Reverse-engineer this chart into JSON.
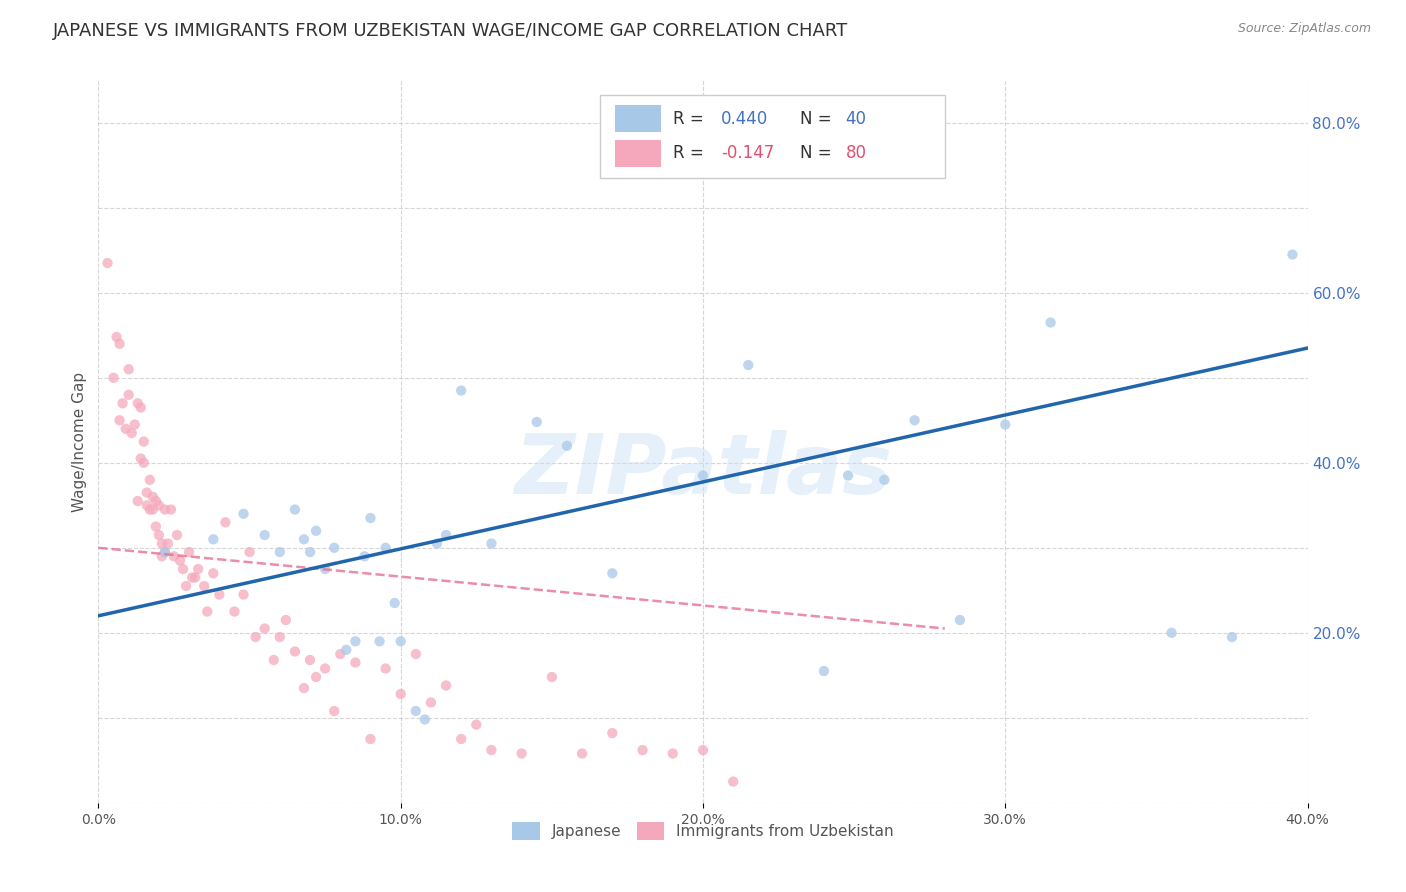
{
  "title": "JAPANESE VS IMMIGRANTS FROM UZBEKISTAN WAGE/INCOME GAP CORRELATION CHART",
  "source": "Source: ZipAtlas.com",
  "ylabel": "Wage/Income Gap",
  "watermark": "ZIPatlas",
  "xlim": [
    0.0,
    0.4
  ],
  "ylim": [
    0.0,
    0.85
  ],
  "xtick_labels": [
    "0.0%",
    "10.0%",
    "20.0%",
    "30.0%",
    "40.0%"
  ],
  "xtick_vals": [
    0.0,
    0.1,
    0.2,
    0.3,
    0.4
  ],
  "ytick_labels": [
    "20.0%",
    "40.0%",
    "60.0%",
    "80.0%"
  ],
  "ytick_vals": [
    0.2,
    0.4,
    0.6,
    0.8
  ],
  "blue_scatter_x": [
    0.022,
    0.038,
    0.048,
    0.055,
    0.06,
    0.065,
    0.068,
    0.07,
    0.072,
    0.075,
    0.078,
    0.082,
    0.085,
    0.088,
    0.09,
    0.093,
    0.095,
    0.098,
    0.1,
    0.105,
    0.108,
    0.112,
    0.115,
    0.12,
    0.13,
    0.145,
    0.155,
    0.17,
    0.2,
    0.215,
    0.24,
    0.248,
    0.26,
    0.27,
    0.285,
    0.3,
    0.315,
    0.355,
    0.375,
    0.395
  ],
  "blue_scatter_y": [
    0.295,
    0.31,
    0.34,
    0.315,
    0.295,
    0.345,
    0.31,
    0.295,
    0.32,
    0.275,
    0.3,
    0.18,
    0.19,
    0.29,
    0.335,
    0.19,
    0.3,
    0.235,
    0.19,
    0.108,
    0.098,
    0.305,
    0.315,
    0.485,
    0.305,
    0.448,
    0.42,
    0.27,
    0.385,
    0.515,
    0.155,
    0.385,
    0.38,
    0.45,
    0.215,
    0.445,
    0.565,
    0.2,
    0.195,
    0.645
  ],
  "pink_scatter_x": [
    0.003,
    0.005,
    0.006,
    0.007,
    0.007,
    0.008,
    0.009,
    0.01,
    0.01,
    0.011,
    0.012,
    0.013,
    0.013,
    0.014,
    0.014,
    0.015,
    0.015,
    0.016,
    0.016,
    0.017,
    0.017,
    0.018,
    0.018,
    0.019,
    0.019,
    0.02,
    0.02,
    0.021,
    0.021,
    0.022,
    0.022,
    0.023,
    0.024,
    0.025,
    0.026,
    0.027,
    0.028,
    0.029,
    0.03,
    0.031,
    0.032,
    0.033,
    0.035,
    0.036,
    0.038,
    0.04,
    0.042,
    0.045,
    0.048,
    0.05,
    0.052,
    0.055,
    0.058,
    0.06,
    0.062,
    0.065,
    0.068,
    0.07,
    0.072,
    0.075,
    0.078,
    0.08,
    0.085,
    0.09,
    0.095,
    0.1,
    0.105,
    0.11,
    0.115,
    0.12,
    0.125,
    0.13,
    0.14,
    0.15,
    0.16,
    0.17,
    0.18,
    0.19,
    0.2,
    0.21
  ],
  "pink_scatter_y": [
    0.635,
    0.5,
    0.548,
    0.45,
    0.54,
    0.47,
    0.44,
    0.48,
    0.51,
    0.435,
    0.445,
    0.355,
    0.47,
    0.405,
    0.465,
    0.4,
    0.425,
    0.365,
    0.35,
    0.345,
    0.38,
    0.345,
    0.36,
    0.325,
    0.355,
    0.315,
    0.35,
    0.29,
    0.305,
    0.345,
    0.295,
    0.305,
    0.345,
    0.29,
    0.315,
    0.285,
    0.275,
    0.255,
    0.295,
    0.265,
    0.265,
    0.275,
    0.255,
    0.225,
    0.27,
    0.245,
    0.33,
    0.225,
    0.245,
    0.295,
    0.195,
    0.205,
    0.168,
    0.195,
    0.215,
    0.178,
    0.135,
    0.168,
    0.148,
    0.158,
    0.108,
    0.175,
    0.165,
    0.075,
    0.158,
    0.128,
    0.175,
    0.118,
    0.138,
    0.075,
    0.092,
    0.062,
    0.058,
    0.148,
    0.058,
    0.082,
    0.062,
    0.058,
    0.062,
    0.025
  ],
  "blue_line_x": [
    0.0,
    0.4
  ],
  "blue_line_y": [
    0.22,
    0.535
  ],
  "pink_line_x": [
    0.0,
    0.28
  ],
  "pink_line_y": [
    0.3,
    0.205
  ],
  "blue_scatter_color": "#a8c8e8",
  "pink_scatter_color": "#f5a8bc",
  "blue_line_color": "#2166ac",
  "pink_line_color": "#e87090",
  "background_color": "#ffffff",
  "grid_color": "#cccccc",
  "title_fontsize": 13,
  "axis_label_fontsize": 11,
  "tick_fontsize": 10,
  "scatter_alpha": 0.75,
  "scatter_size": 55
}
